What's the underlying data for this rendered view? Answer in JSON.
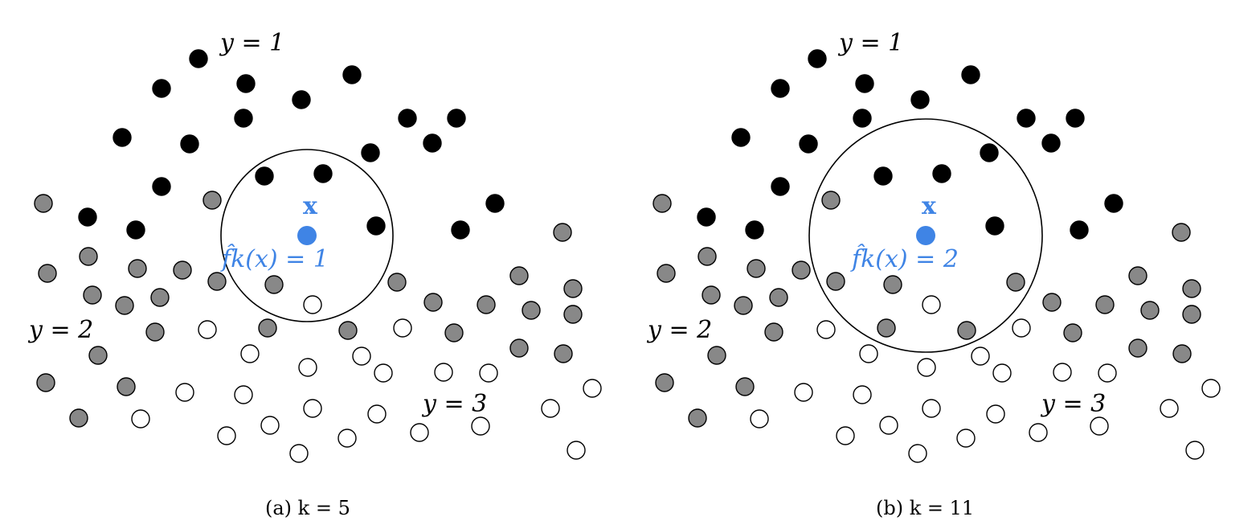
{
  "colors": {
    "class1": "#000000",
    "class2": "#888888",
    "class3": "#ffffff",
    "query": "#3f84e5"
  },
  "class_labels": {
    "y1": "y = 1",
    "y2": "y = 2",
    "y3": "y = 3"
  },
  "query_label": "x",
  "panels": [
    {
      "caption": "(a)  k = 5",
      "prediction": "f̂k(x) = 1",
      "k": 5
    },
    {
      "caption": "(b)  k = 11",
      "prediction": "f̂k(x) = 2",
      "k": 11
    }
  ]
}
